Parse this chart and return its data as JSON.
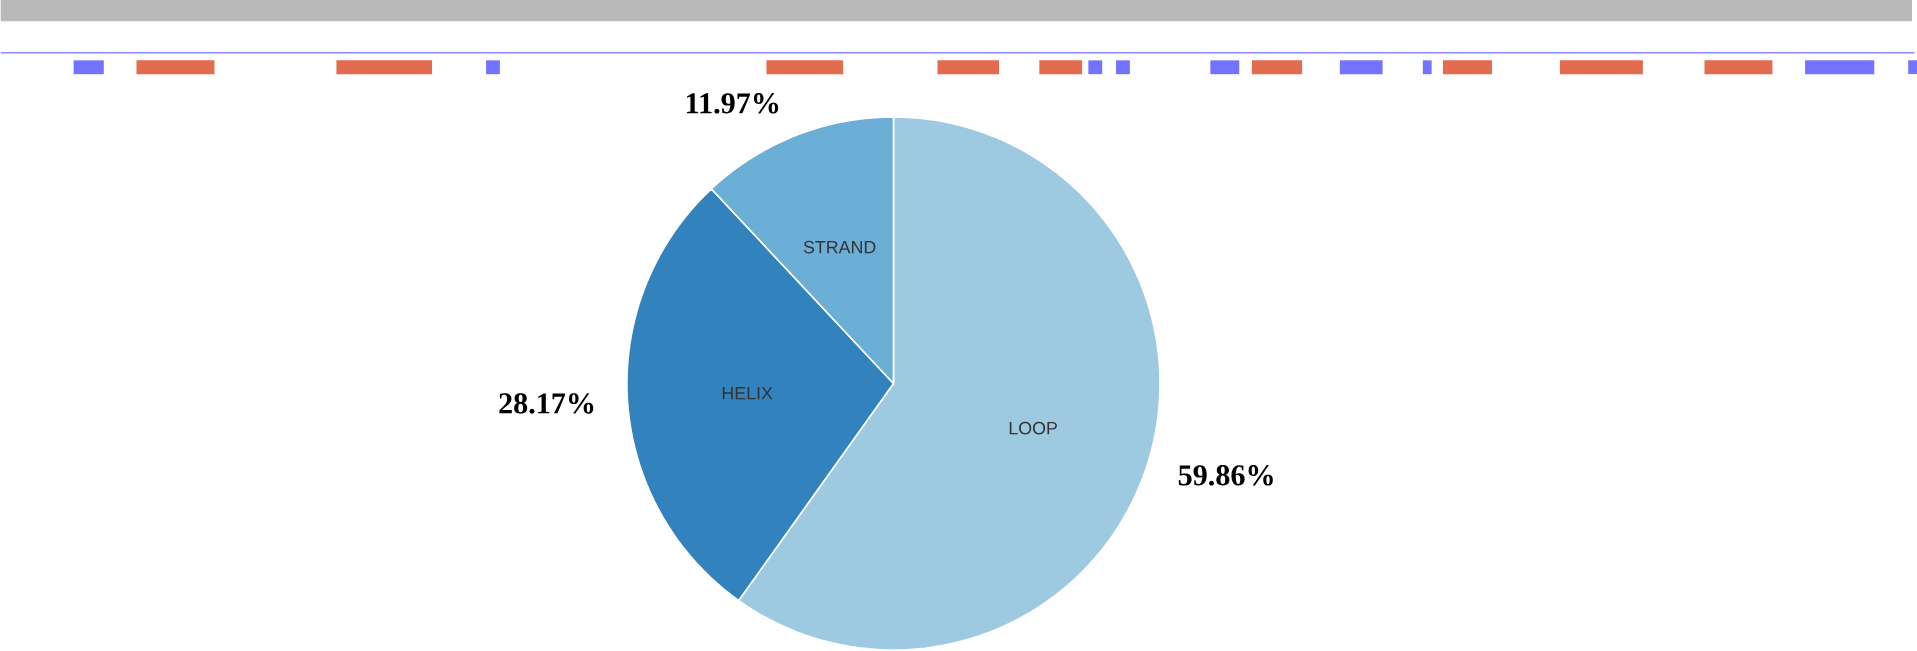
{
  "chart_data": {
    "type": "pie",
    "categories": [
      "LOOP",
      "HELIX",
      "STRAND"
    ],
    "values": [
      59.86,
      28.17,
      11.97
    ],
    "colors": [
      "#9ecae1",
      "#3182bd",
      "#6baed6"
    ],
    "value_labels": [
      "59.86%",
      "28.17%",
      "11.97%"
    ]
  }
}
